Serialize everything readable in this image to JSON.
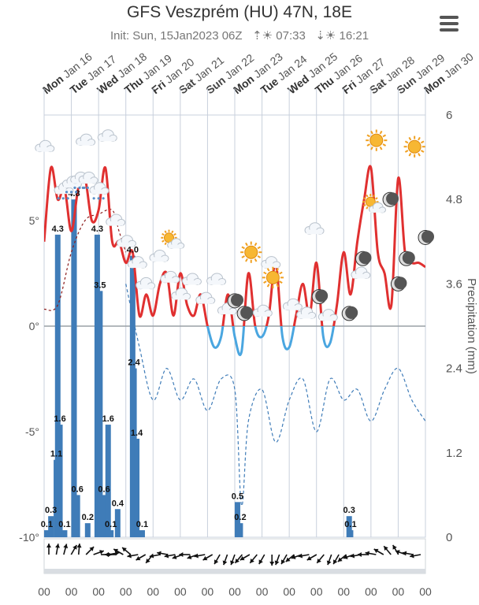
{
  "header": {
    "title": "GFS Veszprém (HU) 47N, 18E",
    "init": "Init: Sun, 15Jan2023 06Z",
    "sunrise": "07:33",
    "sunset": "16:21"
  },
  "colors": {
    "temp_above": "#e03030",
    "temp_below": "#4aa6e0",
    "precip_bar": "#3f7cb8",
    "dewpoint": "#8b1a1a",
    "cloud_line": "#3f7cb8",
    "grid": "#c8d0dc",
    "zero_line": "#9aa0a6"
  },
  "chart_data": {
    "type": "meteogram",
    "title": "GFS Veszprém (HU) 47N, 18E",
    "days": [
      {
        "label": "Mon Jan 16",
        "weekend": false
      },
      {
        "label": "Tue Jan 17",
        "weekend": false
      },
      {
        "label": "Wed Jan 18",
        "weekend": false
      },
      {
        "label": "Thu Jan 19",
        "weekend": false
      },
      {
        "label": "Fri Jan 20",
        "weekend": false
      },
      {
        "label": "Sat Jan 21",
        "weekend": true
      },
      {
        "label": "Sun Jan 22",
        "weekend": true
      },
      {
        "label": "Mon Jan 23",
        "weekend": false
      },
      {
        "label": "Tue Jan 24",
        "weekend": false
      },
      {
        "label": "Wed Jan 25",
        "weekend": false
      },
      {
        "label": "Thu Jan 26",
        "weekend": false
      },
      {
        "label": "Fri Jan 27",
        "weekend": false
      },
      {
        "label": "Sat Jan 28",
        "weekend": true
      },
      {
        "label": "Sun Jan 29",
        "weekend": true
      },
      {
        "label": "Mon Jan 30",
        "weekend": false
      }
    ],
    "temp_axis": {
      "ticks": [
        "5°",
        "0°",
        "-5°",
        "-10°"
      ],
      "values": [
        5,
        0,
        -5,
        -10
      ],
      "range": [
        -10,
        10
      ]
    },
    "precip_axis": {
      "label": "Precipitation (mm)",
      "ticks": [
        "6",
        "4.8",
        "3.6",
        "2.4",
        "1.2",
        "0"
      ],
      "values": [
        6,
        4.8,
        3.6,
        2.4,
        1.2,
        0
      ],
      "range": [
        0,
        6
      ]
    },
    "temperature": {
      "t": [
        0,
        0.25,
        0.5,
        0.75,
        1.0,
        1.25,
        1.5,
        1.75,
        2.0,
        2.25,
        2.5,
        2.75,
        3.0,
        3.25,
        3.5,
        3.75,
        4.0,
        4.25,
        4.5,
        4.75,
        5.0,
        5.25,
        5.5,
        5.75,
        6.0,
        6.25,
        6.5,
        6.75,
        7.0,
        7.25,
        7.5,
        7.75,
        8.0,
        8.25,
        8.5,
        8.75,
        9.0,
        9.25,
        9.5,
        9.75,
        10.0,
        10.25,
        10.5,
        10.75,
        11.0,
        11.25,
        11.5,
        11.75,
        12.0,
        12.25,
        12.5,
        12.75,
        13.0,
        13.25,
        13.5,
        13.75,
        14.0
      ],
      "values": [
        4.0,
        7.5,
        6.0,
        6.5,
        4.5,
        6.5,
        7.0,
        5.0,
        5.5,
        7.5,
        4.0,
        4.0,
        3.0,
        3.5,
        0.5,
        1.5,
        0.5,
        2.0,
        2.5,
        0.5,
        2.5,
        1.0,
        0.5,
        1.5,
        0.0,
        -1.0,
        -0.5,
        1.5,
        -0.5,
        -1.2,
        2.5,
        0.0,
        -0.5,
        0.5,
        3.0,
        -0.5,
        -1.0,
        0.5,
        2.0,
        0.5,
        3.0,
        -0.5,
        -0.8,
        1.0,
        3.5,
        1.5,
        4.0,
        6.0,
        7.5,
        3.5,
        2.5,
        1.0,
        7.0,
        3.5,
        3.0,
        3.0,
        2.8
      ]
    },
    "dewpoint": {
      "t": [
        0,
        0.5,
        1.0,
        1.5,
        2.0,
        2.5,
        2.75,
        3.0
      ],
      "values": [
        0.8,
        1.0,
        3.5,
        5.0,
        5.3,
        5.5,
        4.5,
        3.5
      ]
    },
    "cloud_cover": {
      "t": [
        3.0,
        3.5,
        4.0,
        4.5,
        5.0,
        5.5,
        6.0,
        6.5,
        7.0,
        7.25,
        7.5,
        8.0,
        8.5,
        9.0,
        9.5,
        10.0,
        10.5,
        11.0,
        11.5,
        12.0,
        12.5,
        13.0,
        13.5,
        14.0
      ],
      "values": [
        2.0,
        -1.0,
        -3.5,
        -2.0,
        -3.5,
        -2.5,
        -4.0,
        -2.5,
        -3.0,
        -8.5,
        -4.5,
        -3.0,
        -5.5,
        -3.5,
        -2.5,
        -5.0,
        -2.5,
        -3.5,
        -3.0,
        -4.5,
        -3.0,
        -2.0,
        -3.5,
        -4.5
      ]
    },
    "precip_bars": [
      {
        "t": 0.1,
        "value": 0.1
      },
      {
        "t": 0.25,
        "value": 0.3
      },
      {
        "t": 0.45,
        "value": 1.1
      },
      {
        "t": 0.58,
        "value": 1.6
      },
      {
        "t": 0.5,
        "value": 4.3
      },
      {
        "t": 0.75,
        "value": 0.1
      },
      {
        "t": 1.1,
        "value": 4.8
      },
      {
        "t": 1.22,
        "value": 0.6
      },
      {
        "t": 1.6,
        "value": 0.2
      },
      {
        "t": 1.95,
        "value": 4.3
      },
      {
        "t": 2.05,
        "value": 3.5
      },
      {
        "t": 2.2,
        "value": 0.6
      },
      {
        "t": 2.35,
        "value": 1.6
      },
      {
        "t": 2.45,
        "value": 0.1
      },
      {
        "t": 2.7,
        "value": 0.4
      },
      {
        "t": 3.25,
        "value": 4.0
      },
      {
        "t": 3.3,
        "value": 2.4
      },
      {
        "t": 3.4,
        "value": 1.4
      },
      {
        "t": 3.6,
        "value": 0.1
      },
      {
        "t": 7.1,
        "value": 0.5
      },
      {
        "t": 7.2,
        "value": 0.2
      },
      {
        "t": 11.2,
        "value": 0.3
      },
      {
        "t": 11.25,
        "value": 0.1
      }
    ],
    "bar_labels": [
      "0.1",
      "0.3",
      "1.1",
      "1.6",
      "4.3",
      "0.1",
      "4.8",
      "0.6",
      "0.2",
      "4.3",
      "3.5",
      "0.6",
      "1.6",
      "0.1",
      "0.4",
      "4.0",
      "2.4",
      "1.4",
      "0.1",
      "0.5",
      "0.2",
      "0.3",
      "0.1"
    ],
    "weather_icons": [
      {
        "t": 0.0,
        "temp": 8.5,
        "icon": "cloud-icon"
      },
      {
        "t": 0.7,
        "temp": 6.5,
        "icon": "cloud-snow-icon"
      },
      {
        "t": 1.0,
        "temp": 6.8,
        "icon": "cloud-snow-icon"
      },
      {
        "t": 1.3,
        "temp": 7.0,
        "icon": "cloud-snow-icon"
      },
      {
        "t": 1.6,
        "temp": 7.0,
        "icon": "cloud-snow-icon"
      },
      {
        "t": 1.5,
        "temp": 8.8,
        "icon": "cloud-icon"
      },
      {
        "t": 2.3,
        "temp": 9.0,
        "icon": "cloud-icon"
      },
      {
        "t": 2.0,
        "temp": 6.5,
        "icon": "cloud-snow-icon"
      },
      {
        "t": 2.6,
        "temp": 5.0,
        "icon": "cloud-icon"
      },
      {
        "t": 3.0,
        "temp": 4.0,
        "icon": "cloud-icon"
      },
      {
        "t": 3.4,
        "temp": 3.0,
        "icon": "cloud-icon"
      },
      {
        "t": 3.7,
        "temp": 2.0,
        "icon": "cloud-icon"
      },
      {
        "t": 4.2,
        "temp": 3.3,
        "icon": "cloud-icon"
      },
      {
        "t": 4.6,
        "temp": 2.3,
        "icon": "cloud-icon"
      },
      {
        "t": 4.7,
        "temp": 4.0,
        "icon": "sun-cloud-icon"
      },
      {
        "t": 5.0,
        "temp": 1.5,
        "icon": "cloud-icon"
      },
      {
        "t": 5.4,
        "temp": 2.2,
        "icon": "cloud-icon"
      },
      {
        "t": 5.9,
        "temp": 1.3,
        "icon": "cloud-icon"
      },
      {
        "t": 6.3,
        "temp": 2.2,
        "icon": "cloud-icon"
      },
      {
        "t": 6.7,
        "temp": 0.8,
        "icon": "cloud-icon"
      },
      {
        "t": 7.0,
        "temp": 1.2,
        "icon": "moon-icon"
      },
      {
        "t": 7.6,
        "temp": 3.5,
        "icon": "sun-icon"
      },
      {
        "t": 8.3,
        "temp": 3.0,
        "icon": "cloud-icon"
      },
      {
        "t": 7.35,
        "temp": 0.6,
        "icon": "moon-icon"
      },
      {
        "t": 8.0,
        "temp": 0.7,
        "icon": "cloud-icon"
      },
      {
        "t": 8.4,
        "temp": 2.3,
        "icon": "sun-icon"
      },
      {
        "t": 9.1,
        "temp": 1.0,
        "icon": "cloud-icon"
      },
      {
        "t": 9.6,
        "temp": 0.6,
        "icon": "cloud-icon"
      },
      {
        "t": 9.9,
        "temp": 4.6,
        "icon": "cloud-icon"
      },
      {
        "t": 10.1,
        "temp": 1.4,
        "icon": "moon-icon"
      },
      {
        "t": 10.4,
        "temp": 0.5,
        "icon": "cloud-icon"
      },
      {
        "t": 11.2,
        "temp": 0.6,
        "icon": "moon-icon"
      },
      {
        "t": 11.6,
        "temp": 2.5,
        "icon": "cloud-icon"
      },
      {
        "t": 11.7,
        "temp": 3.2,
        "icon": "moon-icon"
      },
      {
        "t": 12.1,
        "temp": 5.7,
        "icon": "sun-cloud-icon"
      },
      {
        "t": 12.2,
        "temp": 8.8,
        "icon": "sun-icon"
      },
      {
        "t": 12.7,
        "temp": 6.0,
        "icon": "moon-icon"
      },
      {
        "t": 13.0,
        "temp": 2.0,
        "icon": "moon-icon"
      },
      {
        "t": 13.3,
        "temp": 3.2,
        "icon": "moon-icon"
      },
      {
        "t": 13.6,
        "temp": 8.5,
        "icon": "sun-icon"
      },
      {
        "t": 14.0,
        "temp": 4.2,
        "icon": "moon-icon"
      }
    ],
    "hour_labels": [
      "00",
      "00",
      "00",
      "00",
      "00",
      "00",
      "00",
      "00",
      "00",
      "00",
      "00",
      "00",
      "00",
      "00",
      "00"
    ],
    "wind_directions_deg": [
      0,
      10,
      15,
      30,
      5,
      45,
      70,
      90,
      80,
      270,
      300,
      310,
      260,
      240,
      220,
      260,
      280,
      260,
      250,
      270,
      250,
      260,
      240,
      210,
      200,
      200,
      220,
      240,
      220,
      210,
      180,
      200,
      210,
      230,
      250,
      260,
      240,
      220,
      200,
      210,
      230,
      250,
      260,
      270,
      280,
      300,
      320,
      330,
      290,
      280,
      260
    ]
  }
}
